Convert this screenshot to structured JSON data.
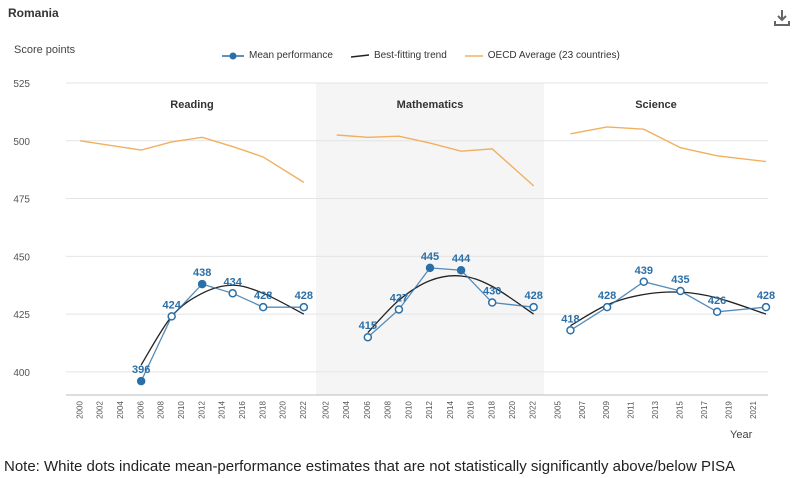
{
  "header": {
    "country": "Romania",
    "ylabel": "Score points",
    "xlabel": "Year",
    "download_icon": "download-icon"
  },
  "legend": {
    "mean": "Mean performance",
    "trend": "Best-fitting trend",
    "oecd": "OECD Average (23 countries)"
  },
  "note": "Note: White dots indicate mean-performance estimates that are not statistically significantly above/below PISA",
  "colors": {
    "mean": "#2a6fa8",
    "trend": "#222222",
    "oecd": "#f0b060",
    "label": "#2a6fa8",
    "panel_bg": "#f5f5f5"
  },
  "chart_data": {
    "type": "line",
    "y_ticks": [
      400,
      425,
      450,
      475,
      500,
      525
    ],
    "ylim": [
      390,
      525
    ],
    "grid": true,
    "legend_position": "top",
    "panels": [
      {
        "title": "Reading",
        "years": [
          2000,
          2002,
          2004,
          2006,
          2008,
          2010,
          2012,
          2014,
          2016,
          2018,
          2020,
          2022
        ],
        "mean": [
          {
            "year": 2006,
            "value": 396,
            "significant": true
          },
          {
            "year": 2009,
            "value": 424,
            "significant": false
          },
          {
            "year": 2012,
            "value": 438,
            "significant": true
          },
          {
            "year": 2015,
            "value": 434,
            "significant": false
          },
          {
            "year": 2018,
            "value": 428,
            "significant": false
          },
          {
            "year": 2022,
            "value": 428,
            "significant": false
          }
        ],
        "trend": [
          [
            2006,
            403
          ],
          [
            2009,
            424
          ],
          [
            2012,
            434
          ],
          [
            2015,
            437.5
          ],
          [
            2018,
            434
          ],
          [
            2022,
            425
          ]
        ],
        "oecd": [
          [
            2000,
            500
          ],
          [
            2006,
            496
          ],
          [
            2009,
            499.5
          ],
          [
            2012,
            501.5
          ],
          [
            2015,
            497.5
          ],
          [
            2018,
            493
          ],
          [
            2022,
            482
          ]
        ]
      },
      {
        "title": "Mathematics",
        "years": [
          2002,
          2004,
          2006,
          2008,
          2010,
          2012,
          2014,
          2016,
          2018,
          2020,
          2022
        ],
        "mean": [
          {
            "year": 2006,
            "value": 415,
            "significant": false
          },
          {
            "year": 2009,
            "value": 427,
            "significant": false
          },
          {
            "year": 2012,
            "value": 445,
            "significant": true
          },
          {
            "year": 2015,
            "value": 444,
            "significant": true
          },
          {
            "year": 2018,
            "value": 430,
            "significant": false
          },
          {
            "year": 2022,
            "value": 428,
            "significant": false
          }
        ],
        "trend": [
          [
            2006,
            417
          ],
          [
            2009,
            431
          ],
          [
            2012,
            439.5
          ],
          [
            2015,
            441.5
          ],
          [
            2018,
            437
          ],
          [
            2022,
            425
          ]
        ],
        "oecd": [
          [
            2003,
            502.5
          ],
          [
            2006,
            501.5
          ],
          [
            2009,
            502
          ],
          [
            2012,
            499
          ],
          [
            2015,
            495.5
          ],
          [
            2018,
            496.5
          ],
          [
            2022,
            480.5
          ]
        ]
      },
      {
        "title": "Science",
        "years": [
          2005,
          2007,
          2009,
          2011,
          2013,
          2015,
          2017,
          2019,
          2021
        ],
        "mean": [
          {
            "year": 2006,
            "value": 418,
            "significant": false
          },
          {
            "year": 2009,
            "value": 428,
            "significant": false
          },
          {
            "year": 2012,
            "value": 439,
            "significant": false
          },
          {
            "year": 2015,
            "value": 435,
            "significant": false
          },
          {
            "year": 2018,
            "value": 426,
            "significant": false
          },
          {
            "year": 2022,
            "value": 428,
            "significant": false
          }
        ],
        "trend": [
          [
            2006,
            420
          ],
          [
            2009,
            429
          ],
          [
            2012,
            433.5
          ],
          [
            2015,
            434.5
          ],
          [
            2018,
            432
          ],
          [
            2022,
            425
          ]
        ],
        "oecd": [
          [
            2006,
            503
          ],
          [
            2009,
            506
          ],
          [
            2012,
            505
          ],
          [
            2015,
            497
          ],
          [
            2018,
            493.5
          ],
          [
            2022,
            491
          ]
        ]
      }
    ]
  }
}
